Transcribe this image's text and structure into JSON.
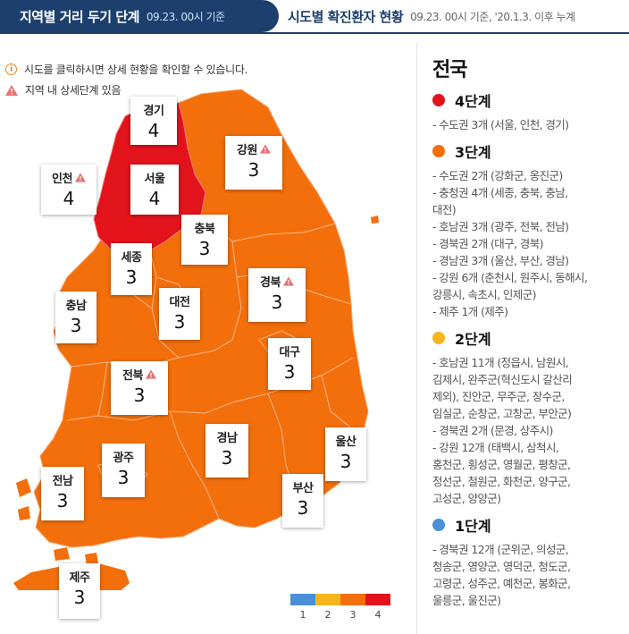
{
  "tabs": {
    "active_title": "지역별 거리 두기 단계",
    "active_date": "09.23. 00시 기준",
    "inactive_title": "시도별 확진환자 현황",
    "inactive_date": "09.23. 00시 기준, '20.1.3. 이후 누계"
  },
  "notes": {
    "click_hint": "시도를 클릭하시면 상세 현황을 확인할 수 있습니다.",
    "detail_hint": "지역 내 상세단계 있음"
  },
  "colors": {
    "level1": "#4a90d9",
    "level2": "#f5b51c",
    "level3": "#f26f0c",
    "level4": "#e2131b",
    "navy": "#1d3f6e"
  },
  "regions": {
    "gyeonggi": {
      "name": "경기",
      "level": "4"
    },
    "incheon": {
      "name": "인천",
      "level": "4"
    },
    "seoul": {
      "name": "서울",
      "level": "4"
    },
    "gangwon": {
      "name": "강원",
      "level": "3"
    },
    "chungbuk": {
      "name": "충북",
      "level": "3"
    },
    "sejong": {
      "name": "세종",
      "level": "3"
    },
    "daejeon": {
      "name": "대전",
      "level": "3"
    },
    "chungnam": {
      "name": "충남",
      "level": "3"
    },
    "gyeongbuk": {
      "name": "경북",
      "level": "3"
    },
    "daegu": {
      "name": "대구",
      "level": "3"
    },
    "jeonbuk": {
      "name": "전북",
      "level": "3"
    },
    "gyeongnam": {
      "name": "경남",
      "level": "3"
    },
    "ulsan": {
      "name": "울산",
      "level": "3"
    },
    "gwangju": {
      "name": "광주",
      "level": "3"
    },
    "jeonnam": {
      "name": "전남",
      "level": "3"
    },
    "busan": {
      "name": "부산",
      "level": "3"
    },
    "jeju": {
      "name": "제주",
      "level": "3"
    }
  },
  "legend": {
    "n1": "1",
    "n2": "2",
    "n3": "3",
    "n4": "4"
  },
  "sidebar": {
    "title": "전국",
    "stage4": {
      "label": "4단계",
      "items": [
        "- 수도권 3개 (서울, 인천, 경기)"
      ]
    },
    "stage3": {
      "label": "3단계",
      "items": [
        "- 수도권 2개 (강화군, 옹진군)",
        "- 충청권 4개 (세종, 충북, 충남,",
        "대전)",
        "- 호남권 3개 (광주, 전북, 전남)",
        "- 경북권 2개 (대구, 경북)",
        "- 경남권 3개 (울산, 부산, 경남)",
        "- 강원 6개 (춘천시, 원주시, 동해시,",
        "강릉시, 속초시, 인제군)",
        "- 제주 1개 (제주)"
      ]
    },
    "stage2": {
      "label": "2단계",
      "items": [
        "- 호남권 11개 (정읍시, 남원시,",
        "김제시, 완주군(혁신도시 갈산리",
        "제외), 진안군, 무주군, 장수군,",
        "임실군, 순창군, 고창군, 부안군)",
        "- 경북권 2개 (문경, 상주시)",
        "- 강원 12개 (태백시, 삼척시,",
        "홍천군, 횡성군, 영월군, 평창군,",
        "정선군, 철원군, 화천군, 양구군,",
        "고성군, 양양군)"
      ]
    },
    "stage1": {
      "label": "1단계",
      "items": [
        "- 경북권 12개 (군위군, 의성군,",
        "청송군, 영양군, 영덕군, 청도군,",
        "고령군, 성주군, 예천군, 봉화군,",
        "울릉군, 울진군)"
      ]
    }
  }
}
